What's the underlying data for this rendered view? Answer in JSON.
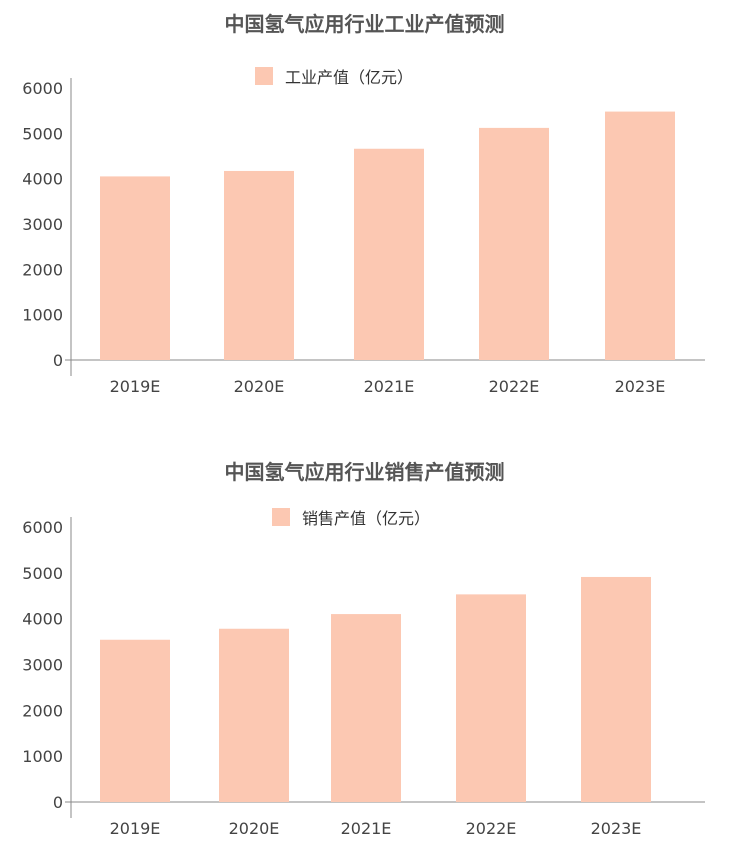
{
  "colors": {
    "bar": "#fcc8b2",
    "axis": "#888888"
  },
  "chart_data": [
    {
      "type": "bar",
      "title": "中国氢气应用行业工业产值预测",
      "xlabel": "",
      "ylabel": "",
      "ylim": [
        0,
        6000
      ],
      "yticks": [
        "0",
        "1000",
        "2000",
        "3000",
        "4000",
        "5000",
        "6000"
      ],
      "categories": [
        "2019E",
        "2020E",
        "2021E",
        "2022E",
        "2023E"
      ],
      "series": [
        {
          "name": "工业产值（亿元）",
          "values": [
            4050,
            4170,
            4660,
            5120,
            5480
          ]
        }
      ],
      "legend_position": "top-center",
      "grid": false
    },
    {
      "type": "bar",
      "title": "中国氢气应用行业销售产值预测",
      "xlabel": "",
      "ylabel": "",
      "ylim": [
        0,
        6000
      ],
      "yticks": [
        "0",
        "1000",
        "2000",
        "3000",
        "4000",
        "5000",
        "6000"
      ],
      "categories": [
        "2019E",
        "2020E",
        "2021E",
        "2022E",
        "2023E"
      ],
      "series": [
        {
          "name": "销售产值（亿元）",
          "values": [
            3540,
            3780,
            4100,
            4530,
            4910
          ]
        }
      ],
      "legend_position": "top-center",
      "grid": false
    }
  ]
}
